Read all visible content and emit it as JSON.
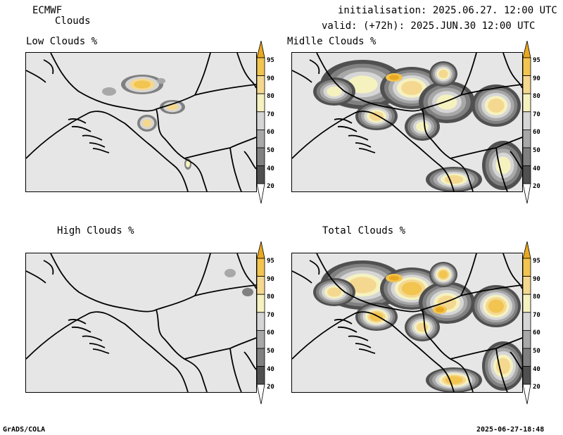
{
  "header": {
    "model": "ECMWF",
    "product": "Clouds",
    "initialisation": "initialisation: 2025.06.27. 12:00 UTC",
    "valid": "valid: (+72h): 2025.JUN.30 12:00 UTC"
  },
  "panels": [
    {
      "title": "Low Clouds %"
    },
    {
      "title": "Midlle Clouds %"
    },
    {
      "title": "High Clouds %"
    },
    {
      "title": "Total Clouds %"
    }
  ],
  "colorbar": {
    "labels": [
      "95",
      "90",
      "80",
      "70",
      "60",
      "50",
      "40",
      "20"
    ],
    "colors": {
      "c95": "#e8a820",
      "c90": "#f2c450",
      "c80": "#f5d890",
      "c70": "#f5f2c0",
      "c60": "#d6d6d6",
      "c50": "#a8a8a8",
      "c40": "#808080",
      "c20": "#505050"
    }
  },
  "footer": {
    "left": "GrADS/COLA",
    "right": "2025-06-27-18:48"
  }
}
